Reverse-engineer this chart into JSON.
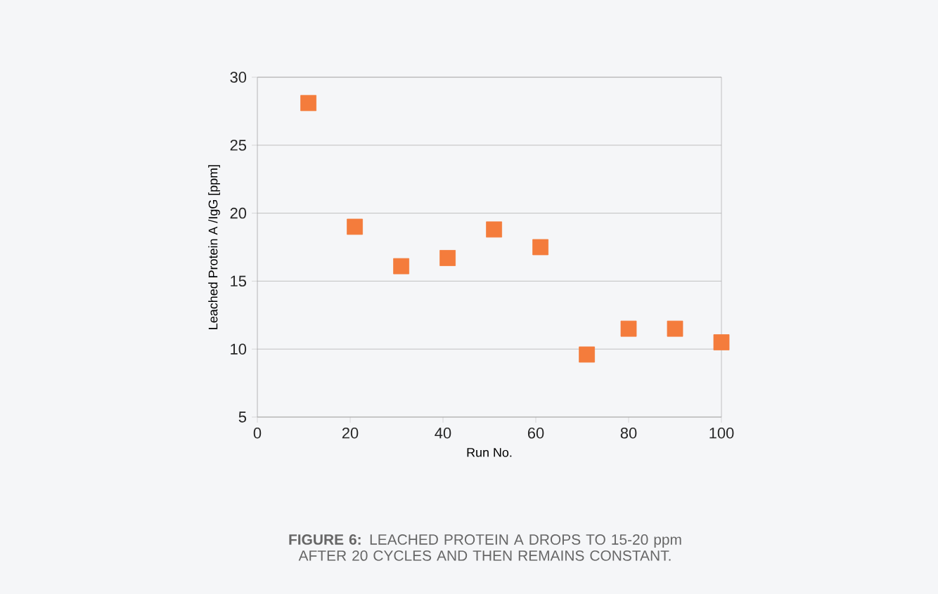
{
  "chart_data": {
    "type": "scatter",
    "xlabel": "Run No.",
    "ylabel": "Leached Protein A /IgG [ppm]",
    "x": [
      11,
      21,
      31,
      41,
      51,
      61,
      71,
      80,
      90,
      100
    ],
    "values": [
      28.1,
      19.0,
      16.1,
      16.7,
      18.8,
      17.5,
      9.6,
      11.5,
      11.5,
      10.5
    ],
    "color": "#f47c3c",
    "marker": "square",
    "xlim": [
      0,
      100
    ],
    "xticks": [
      0,
      20,
      40,
      60,
      80,
      100
    ],
    "ylim": [
      5,
      30
    ],
    "yticks": [
      5,
      10,
      15,
      20,
      25,
      30
    ],
    "grid": "y",
    "annotations": [
      "**FIGURE 6:** LEACHED PROTEIN A DROPS TO 15-20 ppm AFTER 20 CYCLES AND THEN REMAINS CONSTANT."
    ]
  }
}
